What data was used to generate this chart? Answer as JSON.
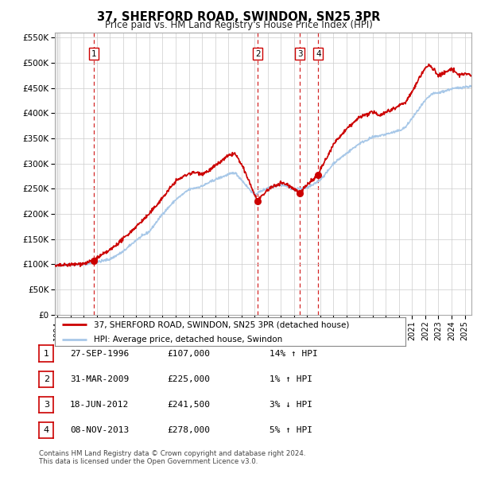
{
  "title": "37, SHERFORD ROAD, SWINDON, SN25 3PR",
  "subtitle": "Price paid vs. HM Land Registry's House Price Index (HPI)",
  "xlim": [
    1993.8,
    2025.5
  ],
  "ylim": [
    0,
    560000
  ],
  "yticks": [
    0,
    50000,
    100000,
    150000,
    200000,
    250000,
    300000,
    350000,
    400000,
    450000,
    500000,
    550000
  ],
  "ytick_labels": [
    "£0",
    "£50K",
    "£100K",
    "£150K",
    "£200K",
    "£250K",
    "£300K",
    "£350K",
    "£400K",
    "£450K",
    "£500K",
    "£550K"
  ],
  "xticks": [
    1994,
    1995,
    1996,
    1997,
    1998,
    1999,
    2000,
    2001,
    2002,
    2003,
    2004,
    2005,
    2006,
    2007,
    2008,
    2009,
    2010,
    2011,
    2012,
    2013,
    2014,
    2015,
    2016,
    2017,
    2018,
    2019,
    2020,
    2021,
    2022,
    2023,
    2024,
    2025
  ],
  "purchases": [
    {
      "year": 1996.75,
      "price": 107000,
      "label": "1"
    },
    {
      "year": 2009.25,
      "price": 225000,
      "label": "2"
    },
    {
      "year": 2012.46,
      "price": 241500,
      "label": "3"
    },
    {
      "year": 2013.85,
      "price": 278000,
      "label": "4"
    }
  ],
  "vlines": [
    1996.75,
    2009.25,
    2012.46,
    2013.85
  ],
  "legend_line1": "37, SHERFORD ROAD, SWINDON, SN25 3PR (detached house)",
  "legend_line2": "HPI: Average price, detached house, Swindon",
  "table_rows": [
    {
      "num": "1",
      "date": "27-SEP-1996",
      "price": "£107,000",
      "hpi": "14% ↑ HPI"
    },
    {
      "num": "2",
      "date": "31-MAR-2009",
      "price": "£225,000",
      "hpi": "1% ↑ HPI"
    },
    {
      "num": "3",
      "date": "18-JUN-2012",
      "price": "£241,500",
      "hpi": "3% ↓ HPI"
    },
    {
      "num": "4",
      "date": "08-NOV-2013",
      "price": "£278,000",
      "hpi": "5% ↑ HPI"
    }
  ],
  "footnote1": "Contains HM Land Registry data © Crown copyright and database right 2024.",
  "footnote2": "This data is licensed under the Open Government Licence v3.0.",
  "property_line_color": "#cc0000",
  "hpi_line_color": "#a8c8e8",
  "vline_color": "#cc0000",
  "grid_color": "#cccccc",
  "plot_bg_color": "#ffffff",
  "hatched_bg_color": "#e8e8e8"
}
